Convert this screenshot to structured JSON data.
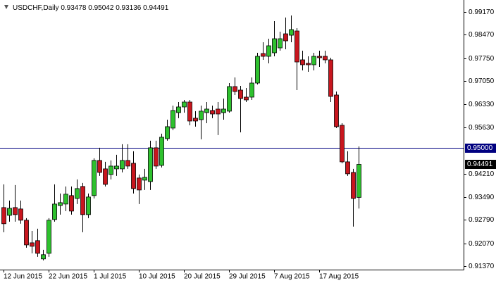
{
  "chart_data": {
    "type": "candlestick",
    "title": "USDCHF,Daily",
    "categories": [
      "12 Jun 2015",
      null,
      null,
      null,
      null,
      null,
      null,
      null,
      "22 Jun 2015",
      null,
      null,
      null,
      null,
      null,
      null,
      null,
      "1 Jul 2015",
      null,
      null,
      null,
      null,
      null,
      null,
      null,
      "10 Jul 2015",
      null,
      null,
      null,
      null,
      null,
      null,
      null,
      "20 Jul 2015",
      null,
      null,
      null,
      null,
      null,
      null,
      null,
      "29 Jul 2015",
      null,
      null,
      null,
      null,
      null,
      null,
      null,
      "7 Aug 2015",
      null,
      null,
      null,
      null,
      null,
      null,
      null,
      "17 Aug 2015",
      null,
      null,
      null,
      null,
      null,
      null,
      null
    ],
    "open": [
      0.93165,
      0.92927,
      0.93165,
      0.93122,
      0.92777,
      0.92083,
      0.9215,
      0.91589,
      0.91761,
      0.92798,
      0.9323,
      0.93273,
      0.93533,
      0.93446,
      0.93813,
      0.92949,
      0.93533,
      0.94612,
      0.94353,
      0.94181,
      0.94353,
      0.94353,
      0.94612,
      0.94525,
      0.94073,
      0.94007,
      0.93964,
      0.95001,
      0.94461,
      0.95282,
      0.95606,
      0.96081,
      0.96254,
      0.96405,
      0.95909,
      0.95865,
      0.96081,
      0.96146,
      0.96189,
      0.96081,
      0.96125,
      0.9688,
      0.96772,
      0.96556,
      0.96556,
      0.96988,
      0.97895,
      0.97809,
      0.97917,
      0.98068,
      0.985,
      0.98457,
      0.98587,
      0.97701,
      0.97593,
      0.9755,
      0.97809,
      0.97809,
      0.97701,
      0.96621,
      0.95692,
      0.94569,
      0.94245,
      0.93478
    ],
    "high": [
      0.93878,
      0.93381,
      0.93856,
      0.93381,
      0.92841,
      0.92449,
      0.92517,
      0.91869,
      0.92841,
      0.93878,
      0.93597,
      0.93813,
      0.93813,
      0.94029,
      0.93921,
      0.93597,
      0.94677,
      0.95001,
      0.94569,
      0.94612,
      0.94785,
      0.95109,
      0.95109,
      0.94893,
      0.94181,
      0.94353,
      0.95217,
      0.95217,
      0.95433,
      0.95865,
      0.96297,
      0.96405,
      0.9647,
      0.9647,
      0.96125,
      0.96297,
      0.96405,
      0.96297,
      0.96405,
      0.96513,
      0.96988,
      0.97161,
      0.96902,
      0.96837,
      0.97161,
      0.97917,
      0.98241,
      0.98349,
      0.98889,
      0.98565,
      0.99,
      0.99062,
      0.98673,
      0.97982,
      0.97809,
      0.97917,
      0.97982,
      0.97982,
      0.97766,
      0.96729,
      0.95757,
      0.94893,
      0.94353,
      0.95042
    ],
    "low": [
      0.92407,
      0.92733,
      0.92733,
      0.92669,
      0.91933,
      0.91761,
      0.91653,
      0.91545,
      0.91653,
      0.92733,
      0.92949,
      0.93057,
      0.92949,
      0.93273,
      0.92407,
      0.92841,
      0.93446,
      0.94137,
      0.93813,
      0.94029,
      0.94137,
      0.94245,
      0.94353,
      0.93597,
      0.93273,
      0.93705,
      0.93705,
      0.94353,
      0.94396,
      0.95217,
      0.95541,
      0.95909,
      0.96081,
      0.95692,
      0.95649,
      0.95261,
      0.95757,
      0.95909,
      0.9539,
      0.95865,
      0.96081,
      0.96621,
      0.95476,
      0.96405,
      0.9647,
      0.96945,
      0.97701,
      0.97593,
      0.97809,
      0.97982,
      0.98025,
      0.98241,
      0.96772,
      0.97377,
      0.97334,
      0.97377,
      0.97485,
      0.97593,
      0.96405,
      0.95606,
      0.94525,
      0.94137,
      0.92581,
      0.93136
    ],
    "close": [
      0.92669,
      0.93143,
      0.92949,
      0.92777,
      0.92019,
      0.91977,
      0.91761,
      0.91718,
      0.92777,
      0.93273,
      0.93316,
      0.93576,
      0.93057,
      0.93748,
      0.92949,
      0.93489,
      0.94612,
      0.94245,
      0.93878,
      0.94439,
      0.94439,
      0.94612,
      0.94439,
      0.93748,
      0.93705,
      0.94094,
      0.95001,
      0.94439,
      0.95325,
      0.95649,
      0.96146,
      0.96254,
      0.96405,
      0.95822,
      0.95822,
      0.96125,
      0.96189,
      0.96038,
      0.96038,
      0.96189,
      0.9688,
      0.96729,
      0.96513,
      0.9647,
      0.96988,
      0.97809,
      0.97809,
      0.98133,
      0.98349,
      0.98349,
      0.98284,
      0.9863,
      0.97636,
      0.9755,
      0.9755,
      0.97809,
      0.97766,
      0.97701,
      0.96578,
      0.95649,
      0.94569,
      0.94202,
      0.93446,
      0.94491
    ],
    "up_color": "#2ec12e",
    "down_color": "#c8161e",
    "ylim": [
      0.9126,
      0.9943
    ],
    "yticks": [
      {
        "value": 0.9137,
        "label": "0.91370"
      },
      {
        "value": 0.9207,
        "label": "0.92070"
      },
      {
        "value": 0.9279,
        "label": "0.92790"
      },
      {
        "value": 0.9349,
        "label": "0.93490"
      },
      {
        "value": 0.9421,
        "label": "0.94210"
      },
      {
        "value": 0.9563,
        "label": "0.95630"
      },
      {
        "value": 0.9633,
        "label": "0.96330"
      },
      {
        "value": 0.9705,
        "label": "0.97050"
      },
      {
        "value": 0.9775,
        "label": "0.97750"
      },
      {
        "value": 0.9847,
        "label": "0.98470"
      },
      {
        "value": 0.9917,
        "label": "0.99170"
      }
    ],
    "hline": {
      "value": 0.95,
      "label": "0.95000",
      "color": "#000080"
    }
  }
}
